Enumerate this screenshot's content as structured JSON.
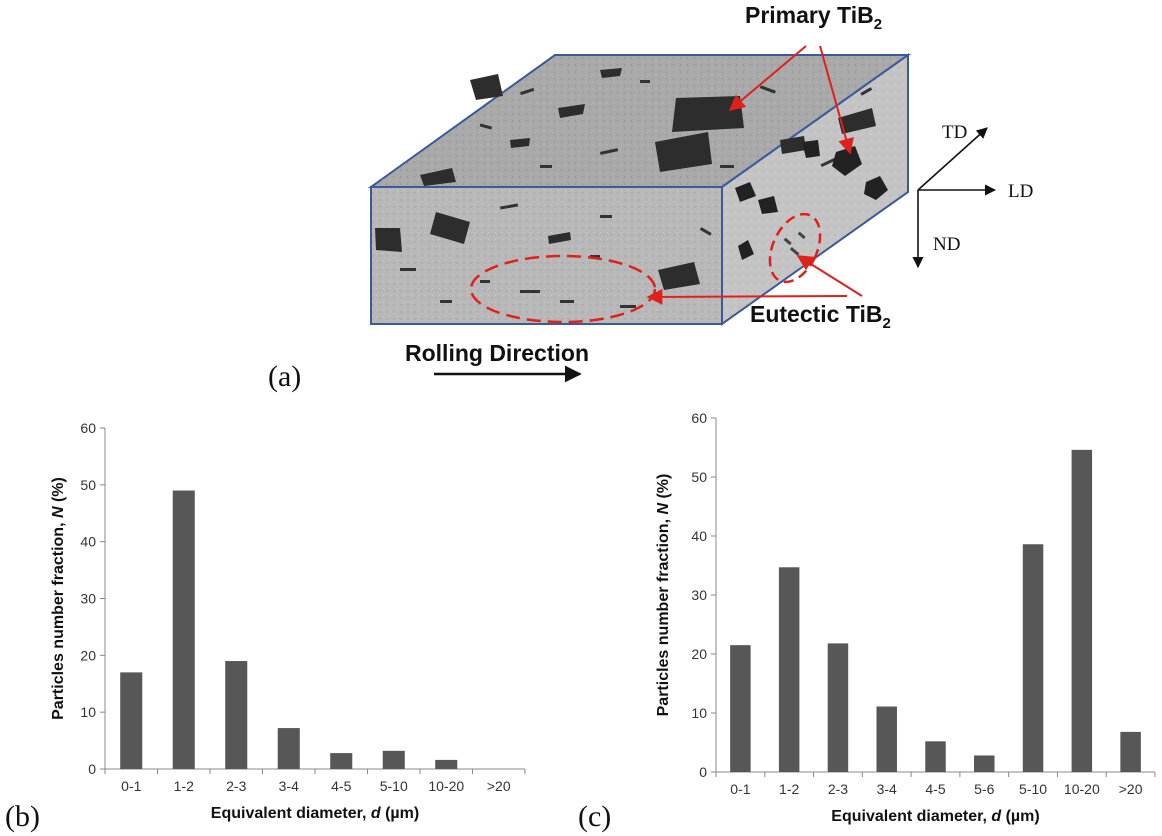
{
  "panel_a": {
    "label": "(a)",
    "callouts": {
      "primary_prefix": "Primary TiB",
      "primary_sub": "2",
      "eutectic_prefix": "Eutectic TiB",
      "eutectic_sub": "2"
    },
    "rolling_direction": "Rolling Direction",
    "axes": {
      "td": "TD",
      "ld": "LD",
      "nd": "ND"
    },
    "colors": {
      "annotation": "#e0201b",
      "frame": "#3b5a9a",
      "particles": "#2a2a2a",
      "matrix": "#b9b9b9"
    }
  },
  "chart_data": [
    {
      "type": "bar",
      "panel_label": "(b)",
      "categories": [
        "0-1",
        "1-2",
        "2-3",
        "3-4",
        "4-5",
        "5-10",
        "10-20",
        ">20"
      ],
      "values": [
        17,
        49,
        19,
        7.2,
        2.8,
        3.2,
        1.6,
        0
      ],
      "xlabel": {
        "prefix": "Equivalent diameter, ",
        "symbol": "d",
        "suffix": " (µm)"
      },
      "ylabel": {
        "prefix": "Particles number fraction, ",
        "symbol": "N",
        "suffix": " (%)"
      },
      "ylim": [
        0,
        60
      ],
      "yticks": [
        "0",
        "10",
        "20",
        "30",
        "40",
        "50",
        "60"
      ],
      "grid": false,
      "bar_color": "#575757"
    },
    {
      "type": "bar",
      "panel_label": "(c)",
      "categories": [
        "0-1",
        "1-2",
        "2-3",
        "3-4",
        "4-5",
        "5-6",
        "5-10",
        "10-20",
        ">20"
      ],
      "values": [
        21.5,
        34.7,
        21.8,
        11.1,
        5.2,
        2.8,
        38.6,
        54.6,
        6.8
      ],
      "xlabel": {
        "prefix": "Equivalent diameter, ",
        "symbol": "d",
        "suffix": " (µm)"
      },
      "ylabel": {
        "prefix": "Particles number fraction, ",
        "symbol": "N",
        "suffix": " (%)"
      },
      "ylim": [
        0,
        60
      ],
      "yticks": [
        "0",
        "10",
        "20",
        "30",
        "40",
        "50",
        "60"
      ],
      "grid": false,
      "bar_color": "#575757"
    }
  ]
}
